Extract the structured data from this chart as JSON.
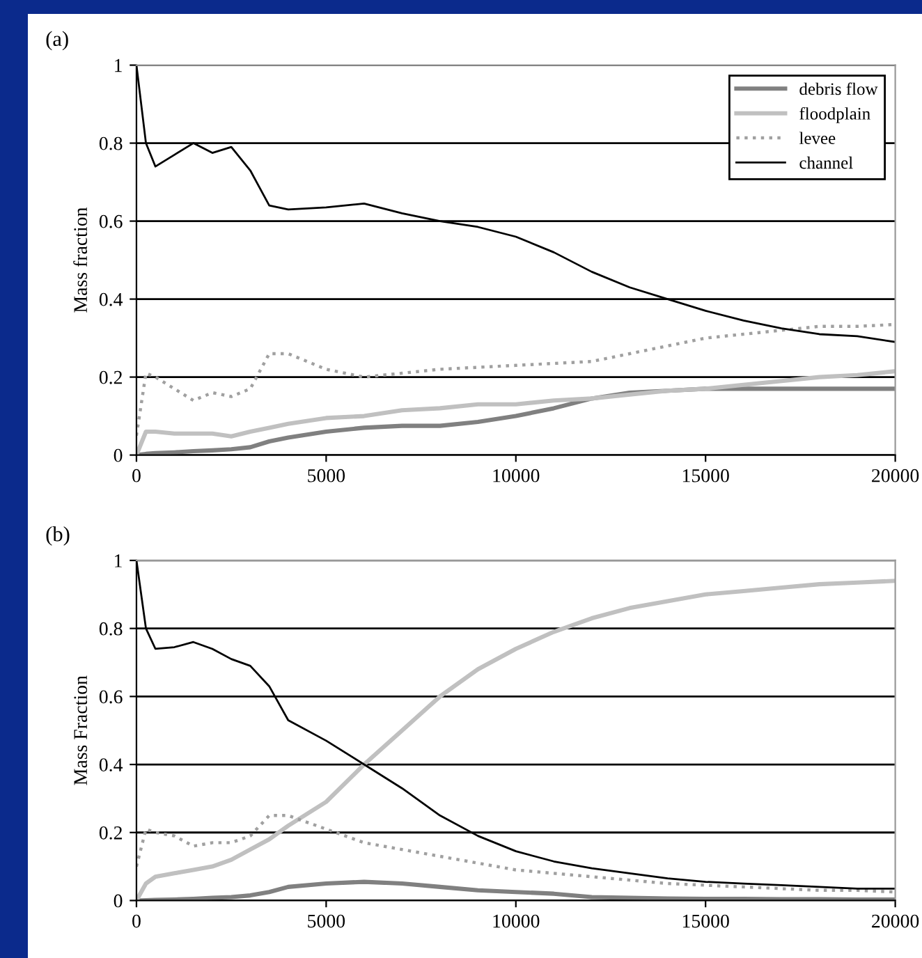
{
  "chart_data": [
    {
      "type": "line",
      "title": "(a)",
      "ylabel": "Mass fraction",
      "x": [
        0,
        250,
        500,
        1000,
        1500,
        2000,
        2500,
        3000,
        3500,
        4000,
        5000,
        6000,
        7000,
        8000,
        9000,
        10000,
        11000,
        12000,
        13000,
        14000,
        15000,
        16000,
        17000,
        18000,
        19000,
        20000
      ],
      "series": [
        {
          "name": "debris flow",
          "color": "#808080",
          "values": [
            0,
            0.003,
            0.005,
            0.007,
            0.01,
            0.012,
            0.015,
            0.02,
            0.035,
            0.045,
            0.06,
            0.07,
            0.075,
            0.075,
            0.085,
            0.1,
            0.12,
            0.145,
            0.16,
            0.165,
            0.17,
            0.17,
            0.17,
            0.17,
            0.17,
            0.17
          ]
        },
        {
          "name": "floodplain",
          "color": "#c0c0c0",
          "values": [
            0,
            0.06,
            0.06,
            0.055,
            0.055,
            0.055,
            0.048,
            0.06,
            0.07,
            0.08,
            0.095,
            0.1,
            0.115,
            0.12,
            0.13,
            0.13,
            0.14,
            0.145,
            0.155,
            0.165,
            0.17,
            0.18,
            0.19,
            0.2,
            0.205,
            0.215
          ]
        },
        {
          "name": "levee",
          "color": "#a0a0a0",
          "line_style": "dotted",
          "values": [
            0.05,
            0.21,
            0.2,
            0.17,
            0.14,
            0.16,
            0.15,
            0.17,
            0.26,
            0.26,
            0.22,
            0.2,
            0.21,
            0.22,
            0.225,
            0.23,
            0.235,
            0.24,
            0.26,
            0.28,
            0.3,
            0.31,
            0.32,
            0.33,
            0.33,
            0.335
          ]
        },
        {
          "name": "channel",
          "color": "#000000",
          "values": [
            1.0,
            0.8,
            0.74,
            0.77,
            0.8,
            0.775,
            0.79,
            0.73,
            0.64,
            0.63,
            0.635,
            0.645,
            0.62,
            0.6,
            0.585,
            0.56,
            0.52,
            0.47,
            0.43,
            0.4,
            0.37,
            0.345,
            0.325,
            0.31,
            0.305,
            0.29
          ]
        }
      ],
      "xlim": [
        0,
        20000
      ],
      "xticks": [
        0,
        5000,
        10000,
        15000,
        20000
      ],
      "ylim": [
        0,
        1
      ],
      "yticks": [
        0,
        0.2,
        0.4,
        0.6,
        0.8,
        1
      ],
      "grid": "y",
      "legend": "top right"
    },
    {
      "type": "line",
      "title": "(b)",
      "ylabel": "Mass Fraction",
      "x": [
        0,
        250,
        500,
        1000,
        1500,
        2000,
        2500,
        3000,
        3500,
        4000,
        5000,
        6000,
        7000,
        8000,
        9000,
        10000,
        11000,
        12000,
        13000,
        14000,
        15000,
        16000,
        17000,
        18000,
        19000,
        20000
      ],
      "series": [
        {
          "color": "#808080",
          "values": [
            0,
            0.001,
            0.002,
            0.003,
            0.005,
            0.008,
            0.01,
            0.015,
            0.025,
            0.04,
            0.05,
            0.055,
            0.05,
            0.04,
            0.03,
            0.025,
            0.02,
            0.01,
            0.008,
            0.006,
            0.005,
            0.005,
            0.004,
            0.004,
            0.003,
            0.003
          ]
        },
        {
          "color": "#c0c0c0",
          "values": [
            0,
            0.05,
            0.07,
            0.08,
            0.09,
            0.1,
            0.12,
            0.15,
            0.18,
            0.22,
            0.29,
            0.4,
            0.5,
            0.6,
            0.68,
            0.74,
            0.79,
            0.83,
            0.86,
            0.88,
            0.9,
            0.91,
            0.92,
            0.93,
            0.935,
            0.94
          ]
        },
        {
          "color": "#a0a0a0",
          "line_style": "dotted",
          "values": [
            0.1,
            0.21,
            0.2,
            0.19,
            0.16,
            0.17,
            0.17,
            0.19,
            0.25,
            0.25,
            0.21,
            0.17,
            0.15,
            0.13,
            0.11,
            0.09,
            0.08,
            0.07,
            0.06,
            0.05,
            0.045,
            0.04,
            0.035,
            0.03,
            0.03,
            0.025
          ]
        },
        {
          "color": "#000000",
          "values": [
            1.0,
            0.8,
            0.74,
            0.745,
            0.76,
            0.74,
            0.71,
            0.69,
            0.63,
            0.53,
            0.47,
            0.4,
            0.33,
            0.25,
            0.19,
            0.145,
            0.115,
            0.095,
            0.08,
            0.065,
            0.055,
            0.05,
            0.045,
            0.04,
            0.035,
            0.035
          ]
        }
      ],
      "xlim": [
        0,
        20000
      ],
      "xticks": [
        0,
        5000,
        10000,
        15000,
        20000
      ],
      "ylim": [
        0,
        1
      ],
      "yticks": [
        0,
        0.2,
        0.4,
        0.6,
        0.8,
        1
      ],
      "grid": "y"
    }
  ]
}
